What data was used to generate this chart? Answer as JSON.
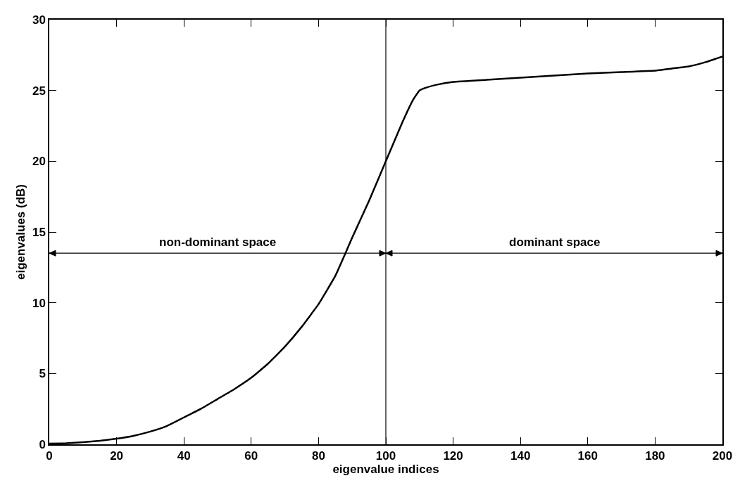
{
  "chart_data": {
    "type": "line",
    "xlabel": "eigenvalue indices",
    "ylabel": "eigenvalues (dB)",
    "x": [
      0,
      5,
      10,
      15,
      20,
      25,
      30,
      35,
      40,
      45,
      50,
      55,
      60,
      65,
      70,
      75,
      80,
      85,
      88,
      90,
      95,
      100,
      105,
      108,
      110,
      112,
      115,
      120,
      130,
      140,
      150,
      160,
      170,
      180,
      185,
      190,
      195,
      200
    ],
    "series": [
      {
        "color": "#000000",
        "values": [
          0.05,
          0.07,
          0.15,
          0.25,
          0.4,
          0.6,
          0.9,
          1.3,
          1.9,
          2.5,
          3.2,
          3.9,
          4.7,
          5.7,
          6.9,
          8.3,
          9.9,
          11.9,
          13.5,
          14.6,
          17.2,
          20.0,
          22.8,
          24.3,
          25.0,
          25.2,
          25.4,
          25.6,
          25.75,
          25.9,
          26.05,
          26.2,
          26.3,
          26.4,
          26.55,
          26.7,
          27.0,
          27.4
        ]
      }
    ],
    "xlim": [
      0,
      200
    ],
    "xticks": [
      0,
      20,
      40,
      60,
      80,
      100,
      120,
      140,
      160,
      180,
      200
    ],
    "ylim": [
      0,
      30
    ],
    "yticks": [
      0,
      5,
      10,
      15,
      20,
      25,
      30
    ],
    "ref_lines": [
      {
        "axis": "x",
        "value": 100,
        "color": "#000000"
      }
    ],
    "annotations": [
      "non-dominant space",
      "dominant space"
    ],
    "marker": "none",
    "line_style": "solid"
  }
}
